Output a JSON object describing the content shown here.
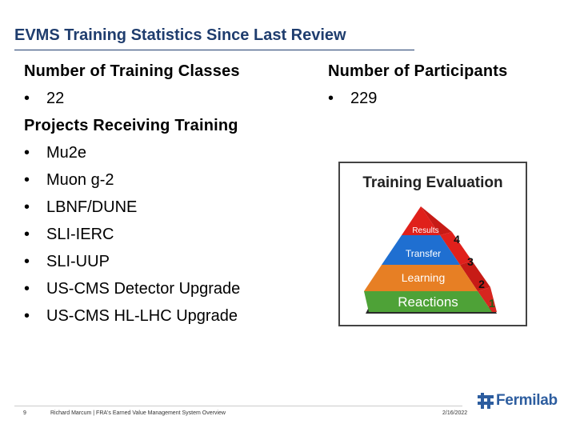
{
  "slide": {
    "title": "EVMS Training Statistics Since Last Review"
  },
  "left": {
    "classes_heading": "Number of Training Classes",
    "classes_value": "22",
    "projects_heading": "Projects Receiving Training",
    "projects": [
      "Mu2e",
      "Muon g-2",
      "LBNF/DUNE",
      "SLI-IERC",
      "SLI-UUP",
      "US-CMS Detector Upgrade",
      "US-CMS HL-LHC Upgrade"
    ]
  },
  "right": {
    "participants_heading": "Number of Participants",
    "participants_value": "229"
  },
  "figure": {
    "title": "Training Evaluation",
    "levels": [
      {
        "label": "Results",
        "number": "4",
        "color": "#e0201b"
      },
      {
        "label": "Transfer",
        "number": "3",
        "color": "#1f6fd1"
      },
      {
        "label": "Learning",
        "number": "2",
        "color": "#e77f24"
      },
      {
        "label": "Reactions",
        "number": "1",
        "color": "#4ea237"
      }
    ]
  },
  "bullet": "•",
  "footer": {
    "page_number": "9",
    "text": "Richard Marcum | FRA's Earned Value Management System Overview",
    "date": "2/16/2022",
    "logo": "Fermilab",
    "logo_icon": "fermilab-logo-icon"
  }
}
